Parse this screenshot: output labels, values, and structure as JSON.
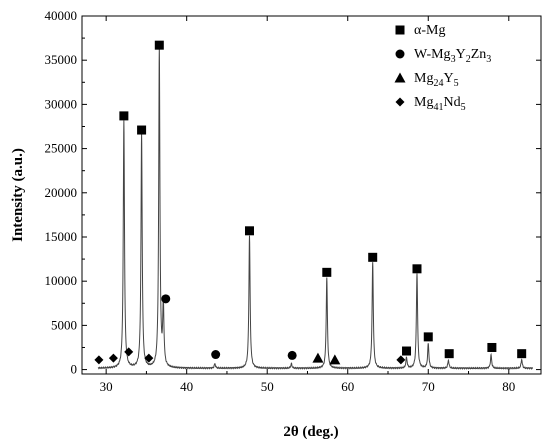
{
  "chart_data": {
    "type": "line",
    "xlabel": "2θ (deg.)",
    "ylabel": "Intensity (a.u.)",
    "xlim": [
      27,
      84
    ],
    "ylim": [
      -500,
      40000
    ],
    "xticks": [
      30,
      40,
      50,
      60,
      70,
      80
    ],
    "yticks": [
      0,
      5000,
      10000,
      15000,
      20000,
      25000,
      30000,
      35000,
      40000
    ],
    "grid": false,
    "legend_position": "top-right",
    "series": [
      {
        "baseline": 0,
        "peaks": [
          {
            "x": 32.2,
            "y": 28000
          },
          {
            "x": 34.4,
            "y": 26500
          },
          {
            "x": 36.6,
            "y": 36000
          },
          {
            "x": 37.1,
            "y": 7000
          },
          {
            "x": 43.5,
            "y": 500
          },
          {
            "x": 47.8,
            "y": 15000
          },
          {
            "x": 53.0,
            "y": 500
          },
          {
            "x": 57.4,
            "y": 10200
          },
          {
            "x": 63.1,
            "y": 12000
          },
          {
            "x": 67.3,
            "y": 1200
          },
          {
            "x": 68.6,
            "y": 10800
          },
          {
            "x": 70.0,
            "y": 2800
          },
          {
            "x": 72.5,
            "y": 900
          },
          {
            "x": 77.8,
            "y": 1500
          },
          {
            "x": 81.6,
            "y": 1000
          }
        ]
      }
    ],
    "phases": [
      {
        "name": "α-Mg",
        "name_parts": [
          {
            "t": "α-Mg",
            "sub": false
          }
        ],
        "marker": "square",
        "points": [
          {
            "x": 32.2,
            "y": 28700
          },
          {
            "x": 34.4,
            "y": 27100
          },
          {
            "x": 36.6,
            "y": 36700
          },
          {
            "x": 47.8,
            "y": 15700
          },
          {
            "x": 57.4,
            "y": 11000
          },
          {
            "x": 63.1,
            "y": 12700
          },
          {
            "x": 67.3,
            "y": 2100
          },
          {
            "x": 68.6,
            "y": 11400
          },
          {
            "x": 70.0,
            "y": 3700
          },
          {
            "x": 72.6,
            "y": 1800
          },
          {
            "x": 77.9,
            "y": 2500
          },
          {
            "x": 81.6,
            "y": 1800
          }
        ]
      },
      {
        "name": "W-Mg3Y2Zn3",
        "name_parts": [
          {
            "t": "W-Mg",
            "sub": false
          },
          {
            "t": "3",
            "sub": true
          },
          {
            "t": "Y",
            "sub": false
          },
          {
            "t": "2",
            "sub": true
          },
          {
            "t": "Zn",
            "sub": false
          },
          {
            "t": "3",
            "sub": true
          }
        ],
        "marker": "circle",
        "points": [
          {
            "x": 37.4,
            "y": 8000
          },
          {
            "x": 43.6,
            "y": 1700
          },
          {
            "x": 53.1,
            "y": 1600
          }
        ]
      },
      {
        "name": "Mg24Y5",
        "name_parts": [
          {
            "t": "Mg",
            "sub": false
          },
          {
            "t": "24",
            "sub": true
          },
          {
            "t": "Y",
            "sub": false
          },
          {
            "t": "5",
            "sub": true
          }
        ],
        "marker": "triangle",
        "points": [
          {
            "x": 56.3,
            "y": 1300
          },
          {
            "x": 58.4,
            "y": 1100
          }
        ]
      },
      {
        "name": "Mg41Nd5",
        "name_parts": [
          {
            "t": "Mg",
            "sub": false
          },
          {
            "t": "41",
            "sub": true
          },
          {
            "t": "Nd",
            "sub": false
          },
          {
            "t": "5",
            "sub": true
          }
        ],
        "marker": "diamond",
        "points": [
          {
            "x": 29.1,
            "y": 1100
          },
          {
            "x": 30.9,
            "y": 1300
          },
          {
            "x": 32.8,
            "y": 2000
          },
          {
            "x": 35.3,
            "y": 1300
          },
          {
            "x": 66.6,
            "y": 1100
          }
        ]
      }
    ]
  }
}
